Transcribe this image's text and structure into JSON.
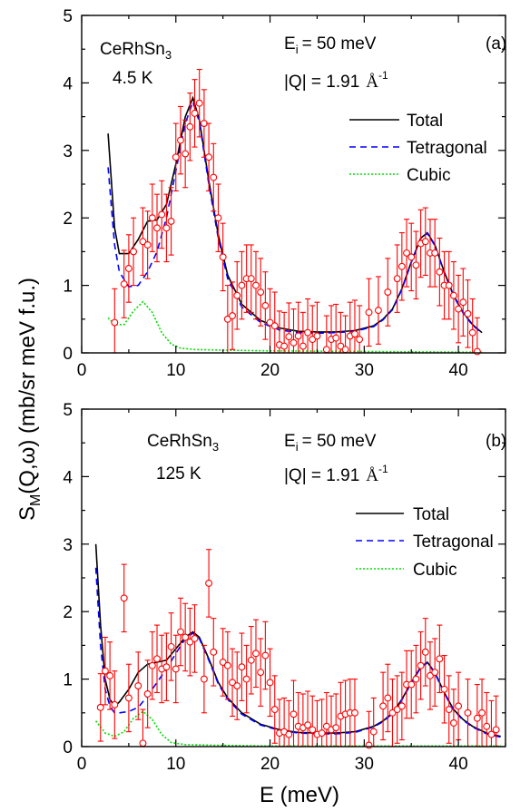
{
  "figure": {
    "ylabel": "S",
    "ylabel_sub": "M",
    "ylabel_rest": "(Q,ω) (mb/sr meV f.u.)",
    "xlabel": "E (meV)"
  },
  "chart_data": [
    {
      "type": "line",
      "panel": "(a)",
      "sample": "CeRhSn",
      "sample_sub": "3",
      "temperature": "4.5 K",
      "ei_label": "E",
      "ei_sub": "i",
      "ei_value": "= 50 meV",
      "q_label": "|Q| =  1.91",
      "q_unit": "Å",
      "q_unit_sup": "-1",
      "xlim": [
        0,
        45
      ],
      "ylim": [
        0,
        5
      ],
      "x_ticks": [
        0,
        10,
        20,
        30,
        40
      ],
      "y_ticks": [
        0,
        1,
        2,
        3,
        4,
        5
      ],
      "legend_position": "top-right",
      "series": [
        {
          "name": "Total",
          "style": "solid",
          "color": "#000000",
          "x": [
            2.8,
            3.5,
            4,
            5,
            6,
            7,
            8,
            9,
            10,
            11,
            11.8,
            12.5,
            13.5,
            14.5,
            15.5,
            17,
            19,
            21,
            23,
            25,
            27,
            29,
            31,
            32,
            33,
            34,
            35,
            36,
            36.7,
            37.5,
            38.5,
            39.5,
            40.5,
            41.5,
            42.5
          ],
          "y": [
            3.25,
            1.85,
            1.47,
            1.47,
            1.68,
            1.95,
            1.97,
            2.2,
            2.8,
            3.5,
            3.78,
            3.45,
            2.55,
            1.75,
            1.15,
            0.72,
            0.48,
            0.37,
            0.32,
            0.31,
            0.31,
            0.33,
            0.4,
            0.5,
            0.65,
            0.95,
            1.35,
            1.7,
            1.78,
            1.6,
            1.2,
            0.85,
            0.6,
            0.42,
            0.3
          ]
        },
        {
          "name": "Tetragonal",
          "style": "dashed",
          "color": "#0000ff",
          "x": [
            2.8,
            3.5,
            4,
            5,
            6,
            7,
            8,
            9,
            10,
            11,
            11.8,
            12.5,
            13.5,
            14.5,
            15.5,
            17,
            19,
            21,
            23,
            25,
            27,
            29,
            31,
            32,
            33,
            34,
            35,
            36,
            36.7,
            37.5,
            38.5,
            39.5,
            40.5,
            41.5,
            42.5
          ],
          "y": [
            2.75,
            1.6,
            1.2,
            0.98,
            1.0,
            1.2,
            1.5,
            2.0,
            2.7,
            3.4,
            3.72,
            3.42,
            2.5,
            1.7,
            1.1,
            0.68,
            0.45,
            0.34,
            0.3,
            0.29,
            0.3,
            0.32,
            0.39,
            0.49,
            0.64,
            0.94,
            1.34,
            1.69,
            1.77,
            1.59,
            1.19,
            0.84,
            0.59,
            0.41,
            0.29
          ]
        },
        {
          "name": "Cubic",
          "style": "dotted",
          "color": "#00dd00",
          "x": [
            2.8,
            3.5,
            4.5,
            5.5,
            6.5,
            7.5,
            8.5,
            9.5,
            10.5,
            12,
            15,
            20,
            30,
            42.5
          ],
          "y": [
            0.52,
            0.42,
            0.42,
            0.62,
            0.76,
            0.6,
            0.3,
            0.13,
            0.07,
            0.05,
            0.04,
            0.03,
            0.02,
            0.01
          ]
        }
      ],
      "data_points": {
        "name": "data",
        "color": "#ff0000",
        "x": [
          3.5,
          4.5,
          5,
          5.5,
          6.5,
          7,
          7.5,
          8,
          8.5,
          9,
          9.5,
          10,
          10.5,
          11,
          11.5,
          12,
          12.5,
          13,
          13.5,
          14,
          14.5,
          15,
          15.5,
          16,
          16.5,
          17,
          17.5,
          18,
          18.5,
          19,
          19.5,
          20,
          20.5,
          21,
          21.5,
          22,
          22.5,
          23,
          23.5,
          24,
          24.5,
          25,
          26,
          26.5,
          27,
          27.5,
          28,
          28.5,
          29,
          29.5,
          30.5,
          31.5,
          32.5,
          33.5,
          34,
          34.5,
          35,
          35.5,
          36,
          36.5,
          37,
          37.5,
          38,
          38.5,
          39,
          39.5,
          40,
          40.5,
          41,
          41.5,
          42
        ],
        "y": [
          0.45,
          1.02,
          1.25,
          1.5,
          1.65,
          1.6,
          2.0,
          1.85,
          2.05,
          1.85,
          1.95,
          2.9,
          3.15,
          2.95,
          3.35,
          3.55,
          3.7,
          3.4,
          2.9,
          2.6,
          2.0,
          1.42,
          0.5,
          0.55,
          0.85,
          1.0,
          1.1,
          1.1,
          1.0,
          0.9,
          0.7,
          0.45,
          0.4,
          0.12,
          0.1,
          0.24,
          0.15,
          0.25,
          0.1,
          0.3,
          0.2,
          0.25,
          0.05,
          0.2,
          0.22,
          0.1,
          0.05,
          0.25,
          0.28,
          0.2,
          0.6,
          0.63,
          0.9,
          1.1,
          1.28,
          1.48,
          1.42,
          1.3,
          1.62,
          1.65,
          1.48,
          1.48,
          1.2,
          1.0,
          1.0,
          0.85,
          0.65,
          0.75,
          0.58,
          0.3,
          0.02
        ],
        "err": 0.5
      }
    },
    {
      "type": "line",
      "panel": "(b)",
      "sample": "CeRhSn",
      "sample_sub": "3",
      "temperature": "125 K",
      "ei_label": "E",
      "ei_sub": "i",
      "ei_value": "= 50 meV",
      "q_label": "|Q| =  1.91",
      "q_unit": "Å",
      "q_unit_sup": "-1",
      "xlim": [
        0,
        45
      ],
      "ylim": [
        0,
        5
      ],
      "x_ticks": [
        0,
        10,
        20,
        30,
        40
      ],
      "y_ticks": [
        0,
        1,
        2,
        3,
        4,
        5
      ],
      "legend_position": "top-right",
      "series": [
        {
          "name": "Total",
          "style": "solid",
          "color": "#000000",
          "x": [
            1.5,
            2,
            2.5,
            3,
            3.5,
            4,
            5,
            6,
            7,
            8,
            9,
            10,
            11,
            11.8,
            12.5,
            13.5,
            14.5,
            15.5,
            17,
            19,
            21,
            23,
            25,
            27,
            29,
            31,
            32,
            33,
            34,
            35,
            36,
            36.7,
            37.5,
            38.5,
            39.5,
            40.5,
            41.5,
            43,
            44.5
          ],
          "y": [
            3.0,
            1.8,
            1.0,
            0.7,
            0.6,
            0.66,
            0.85,
            1.1,
            1.22,
            1.25,
            1.28,
            1.45,
            1.62,
            1.7,
            1.62,
            1.3,
            0.95,
            0.72,
            0.5,
            0.33,
            0.25,
            0.21,
            0.2,
            0.2,
            0.22,
            0.3,
            0.38,
            0.5,
            0.7,
            0.95,
            1.18,
            1.25,
            1.1,
            0.8,
            0.55,
            0.4,
            0.3,
            0.2,
            0.15
          ]
        },
        {
          "name": "Tetragonal",
          "style": "dashed",
          "color": "#0000ff",
          "x": [
            1.5,
            2,
            2.5,
            3,
            3.5,
            4,
            5,
            6,
            7,
            8,
            9,
            10,
            11,
            11.8,
            12.5,
            13.5,
            14.5,
            15.5,
            17,
            19,
            21,
            23,
            25,
            27,
            29,
            31,
            32,
            33,
            34,
            35,
            36,
            36.7,
            37.5,
            38.5,
            39.5,
            40.5,
            41.5,
            43,
            44.5
          ],
          "y": [
            2.65,
            1.5,
            0.85,
            0.6,
            0.5,
            0.5,
            0.52,
            0.58,
            0.75,
            0.95,
            1.15,
            1.38,
            1.6,
            1.68,
            1.6,
            1.28,
            0.93,
            0.7,
            0.48,
            0.32,
            0.24,
            0.2,
            0.19,
            0.19,
            0.21,
            0.29,
            0.37,
            0.49,
            0.69,
            0.94,
            1.17,
            1.24,
            1.09,
            0.79,
            0.54,
            0.39,
            0.29,
            0.19,
            0.14
          ]
        },
        {
          "name": "Cubic",
          "style": "dotted",
          "color": "#00dd00",
          "x": [
            1.5,
            2.5,
            3.5,
            4.5,
            5.5,
            6.5,
            7.5,
            8.5,
            9.5,
            11,
            14,
            20,
            30,
            44.5
          ],
          "y": [
            0.38,
            0.2,
            0.15,
            0.22,
            0.42,
            0.52,
            0.4,
            0.18,
            0.06,
            0.03,
            0.02,
            0.01,
            0.01,
            0.01
          ]
        }
      ],
      "data_points": {
        "name": "data",
        "color": "#ff0000",
        "x": [
          2,
          2.5,
          3,
          3.5,
          4.5,
          5,
          6,
          6.5,
          7,
          7.5,
          8,
          8.5,
          9,
          9.5,
          10,
          10.5,
          11,
          11.5,
          12,
          13,
          13.5,
          14,
          15,
          15.5,
          16,
          16.5,
          17,
          17.5,
          18,
          18.5,
          19,
          19.5,
          20,
          20.5,
          21,
          21.5,
          22,
          22.5,
          23,
          23.5,
          24,
          24.5,
          25,
          25.5,
          26,
          26.5,
          27,
          27.5,
          28,
          28.5,
          29,
          30.5,
          31,
          32,
          32.5,
          33,
          33.5,
          34,
          34.5,
          35,
          35.5,
          36,
          36.5,
          37,
          37.5,
          38,
          38.5,
          39,
          39.5,
          40,
          41,
          42,
          42.5,
          43,
          43.5,
          44
        ],
        "y": [
          0.58,
          1.12,
          1.05,
          0.62,
          2.2,
          0.72,
          0.9,
          0.05,
          0.78,
          1.2,
          1.3,
          1.15,
          1.18,
          1.48,
          1.15,
          1.7,
          1.62,
          1.55,
          1.6,
          1.0,
          2.42,
          1.4,
          1.25,
          1.2,
          0.95,
          0.9,
          1.18,
          1.0,
          1.28,
          1.38,
          1.1,
          1.35,
          0.95,
          0.55,
          0.2,
          0.22,
          0.18,
          0.48,
          0.3,
          0.28,
          0.32,
          0.25,
          0.18,
          0.2,
          0.3,
          0.25,
          0.28,
          0.45,
          0.48,
          0.5,
          0.5,
          0.02,
          0.22,
          0.6,
          0.72,
          0.5,
          0.55,
          0.6,
          0.92,
          0.92,
          1.0,
          1.2,
          1.4,
          1.05,
          1.1,
          1.3,
          0.85,
          0.55,
          0.35,
          0.6,
          0.5,
          0.42,
          0.5,
          0.3,
          0.18,
          0.25
        ],
        "err": 0.5
      }
    }
  ]
}
